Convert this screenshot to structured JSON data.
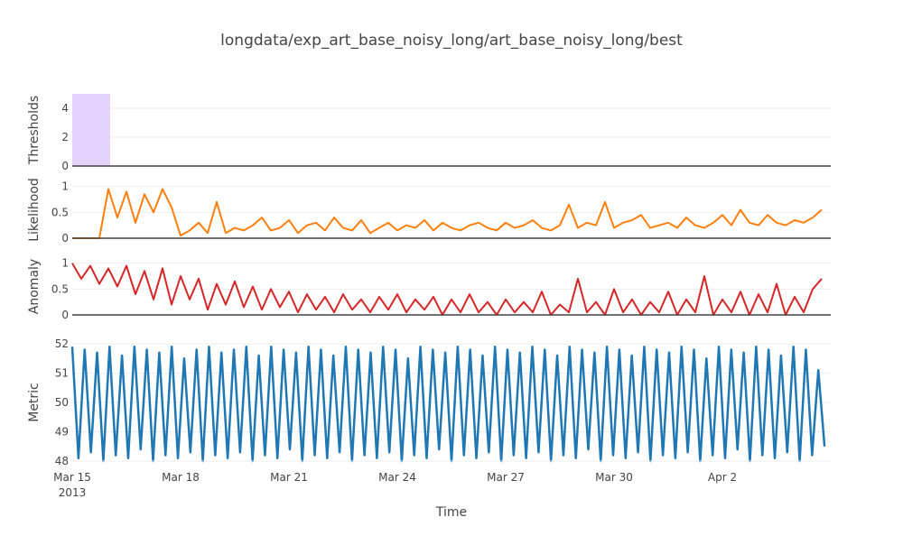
{
  "chart_data": {
    "type": "line",
    "title": "longdata/exp_art_base_noisy_long/art_base_noisy_long/best",
    "xlabel": "Time",
    "x_start": "2013-03-15",
    "x_range_days": [
      0,
      21
    ],
    "x_ticks": [
      {
        "day": 0,
        "label": "Mar 15",
        "sub": "2013"
      },
      {
        "day": 3,
        "label": "Mar 18"
      },
      {
        "day": 6,
        "label": "Mar 21"
      },
      {
        "day": 9,
        "label": "Mar 24"
      },
      {
        "day": 12,
        "label": "Mar 27"
      },
      {
        "day": 15,
        "label": "Mar 30"
      },
      {
        "day": 18,
        "label": "Apr 2"
      }
    ],
    "grid": true,
    "panels": [
      {
        "name": "Thresholds",
        "ylabel": "Thresholds",
        "ylim": [
          0,
          5
        ],
        "yticks": [
          {
            "v": 0,
            "label": "0"
          },
          {
            "v": 2,
            "label": "2"
          },
          {
            "v": 4,
            "label": "4"
          }
        ],
        "series": [
          {
            "name": "Threshold region",
            "type": "area",
            "color": "#e5d2ff",
            "x_days": [
              0,
              1.05
            ],
            "value": 5
          }
        ]
      },
      {
        "name": "Likelihood",
        "ylabel": "Likelihood",
        "ylim": [
          0,
          1.1
        ],
        "yticks": [
          {
            "v": 0,
            "label": "0"
          },
          {
            "v": 0.5,
            "label": "0.5"
          },
          {
            "v": 1,
            "label": "1"
          }
        ],
        "series": [
          {
            "name": "Likelihood",
            "color": "#ff7f0e",
            "step_days": 0.25,
            "values": [
              0,
              0,
              0,
              0,
              0.95,
              0.4,
              0.9,
              0.3,
              0.85,
              0.5,
              0.95,
              0.6,
              0.05,
              0.15,
              0.3,
              0.1,
              0.7,
              0.1,
              0.2,
              0.15,
              0.25,
              0.4,
              0.15,
              0.2,
              0.35,
              0.1,
              0.25,
              0.3,
              0.15,
              0.4,
              0.2,
              0.15,
              0.35,
              0.1,
              0.2,
              0.3,
              0.15,
              0.25,
              0.2,
              0.35,
              0.15,
              0.3,
              0.2,
              0.15,
              0.25,
              0.3,
              0.2,
              0.15,
              0.3,
              0.2,
              0.25,
              0.35,
              0.2,
              0.15,
              0.25,
              0.65,
              0.2,
              0.3,
              0.25,
              0.7,
              0.2,
              0.3,
              0.35,
              0.45,
              0.2,
              0.25,
              0.3,
              0.2,
              0.4,
              0.25,
              0.2,
              0.3,
              0.45,
              0.25,
              0.55,
              0.3,
              0.25,
              0.45,
              0.3,
              0.25,
              0.35,
              0.3,
              0.4,
              0.55
            ]
          }
        ]
      },
      {
        "name": "Anomaly",
        "ylabel": "Anomaly",
        "ylim": [
          0,
          1.1
        ],
        "yticks": [
          {
            "v": 0,
            "label": "0"
          },
          {
            "v": 0.5,
            "label": "0.5"
          },
          {
            "v": 1,
            "label": "1"
          }
        ],
        "series": [
          {
            "name": "Anomaly",
            "color": "#d62728",
            "step_days": 0.25,
            "values": [
              1,
              0.7,
              0.95,
              0.6,
              0.9,
              0.55,
              0.95,
              0.4,
              0.85,
              0.3,
              0.9,
              0.2,
              0.75,
              0.3,
              0.7,
              0.1,
              0.6,
              0.2,
              0.65,
              0.15,
              0.55,
              0.1,
              0.5,
              0.15,
              0.45,
              0.05,
              0.4,
              0.1,
              0.35,
              0.05,
              0.4,
              0.1,
              0.3,
              0.05,
              0.35,
              0.1,
              0.4,
              0.05,
              0.3,
              0.1,
              0.35,
              0.0,
              0.3,
              0.05,
              0.4,
              0.05,
              0.25,
              0.0,
              0.3,
              0.05,
              0.25,
              0.05,
              0.45,
              0.0,
              0.2,
              0.05,
              0.7,
              0.05,
              0.25,
              0.0,
              0.5,
              0.05,
              0.3,
              0.0,
              0.25,
              0.05,
              0.45,
              0.0,
              0.3,
              0.05,
              0.75,
              0.0,
              0.3,
              0.05,
              0.45,
              0.0,
              0.4,
              0.05,
              0.6,
              0.0,
              0.35,
              0.05,
              0.5,
              0.7
            ]
          }
        ]
      },
      {
        "name": "Metric",
        "ylabel": "Metric",
        "ylim": [
          48,
          52
        ],
        "yticks": [
          {
            "v": 48,
            "label": "48"
          },
          {
            "v": 49,
            "label": "49"
          },
          {
            "v": 50,
            "label": "50"
          },
          {
            "v": 51,
            "label": "51"
          },
          {
            "v": 52,
            "label": "52"
          }
        ],
        "series": [
          {
            "name": "Metric",
            "color": "#1f77b4",
            "step_days": 0.175,
            "values": [
              51.9,
              48.1,
              51.8,
              48.3,
              51.7,
              48.0,
              51.9,
              48.2,
              51.6,
              48.1,
              51.9,
              48.4,
              51.8,
              48.0,
              51.7,
              48.2,
              51.9,
              48.1,
              51.5,
              48.3,
              51.8,
              48.0,
              51.9,
              48.2,
              51.7,
              48.1,
              51.8,
              48.3,
              51.9,
              48.0,
              51.6,
              48.2,
              51.9,
              48.1,
              51.8,
              48.4,
              51.7,
              48.0,
              51.9,
              48.2,
              51.8,
              48.1,
              51.6,
              48.3,
              51.9,
              48.0,
              51.8,
              48.2,
              51.7,
              48.1,
              51.9,
              48.3,
              51.8,
              48.0,
              51.5,
              48.2,
              51.9,
              48.1,
              51.8,
              48.4,
              51.7,
              48.0,
              51.9,
              48.2,
              51.8,
              48.1,
              51.6,
              48.3,
              51.9,
              48.0,
              51.8,
              48.2,
              51.7,
              48.1,
              51.9,
              48.3,
              51.8,
              48.0,
              51.6,
              48.2,
              51.9,
              48.1,
              51.8,
              48.4,
              51.7,
              48.0,
              51.9,
              48.2,
              51.8,
              48.1,
              51.6,
              48.3,
              51.9,
              48.0,
              51.8,
              48.2,
              51.7,
              48.1,
              51.9,
              48.3,
              51.8,
              48.0,
              51.5,
              48.2,
              51.9,
              48.1,
              51.8,
              48.4,
              51.7,
              48.0,
              51.9,
              48.2,
              51.8,
              48.1,
              51.6,
              48.3,
              51.9,
              48.0,
              51.8,
              48.2,
              51.1,
              48.5
            ]
          }
        ]
      }
    ]
  }
}
